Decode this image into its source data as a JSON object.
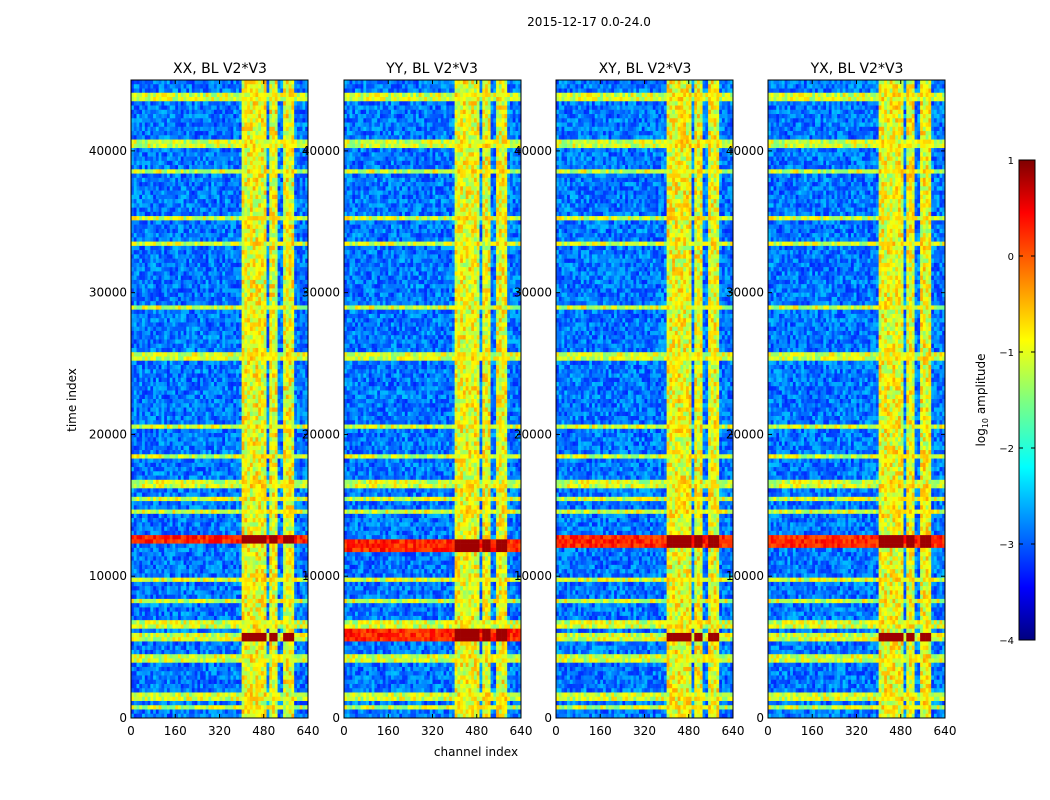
{
  "figure": {
    "suptitle": "2015-12-17 0.0-24.0",
    "colormap": "jet"
  },
  "chart_data": [
    {
      "type": "heatmap",
      "title": "XX, BL V2*V3",
      "xlabel": "channel index",
      "ylabel": "time index",
      "xlim": [
        0,
        640
      ],
      "ylim": [
        0,
        45000
      ],
      "xticks": [
        0,
        160,
        320,
        480,
        640
      ],
      "yticks": [
        0,
        10000,
        20000,
        30000,
        40000
      ],
      "bright_channel_bands": [
        [
          400,
          440
        ],
        [
          440,
          490
        ],
        [
          500,
          530
        ],
        [
          550,
          590
        ]
      ],
      "flagged_time_rows": [
        700,
        1500,
        4200,
        5700,
        6600,
        8300,
        9700,
        12600,
        14500,
        15500,
        16500,
        18500,
        20500,
        25500,
        29000,
        33500,
        35200,
        38500,
        40500,
        43800
      ],
      "hot_events": [
        {
          "time": 12600,
          "type": "row"
        },
        {
          "time": 5700,
          "type": "block"
        }
      ]
    },
    {
      "type": "heatmap",
      "title": "YY, BL V2*V3",
      "xlabel": "channel index",
      "ylabel": "time index",
      "xlim": [
        0,
        640
      ],
      "ylim": [
        0,
        45000
      ],
      "xticks": [
        0,
        160,
        320,
        480,
        640
      ],
      "yticks": [
        0,
        10000,
        20000,
        30000,
        40000
      ],
      "bright_channel_bands": [
        [
          400,
          440
        ],
        [
          440,
          490
        ],
        [
          500,
          530
        ],
        [
          550,
          590
        ]
      ],
      "flagged_time_rows": [
        700,
        1500,
        4200,
        5900,
        6600,
        8300,
        9700,
        12200,
        14500,
        15500,
        16500,
        18500,
        20500,
        25500,
        29000,
        33500,
        35200,
        38500,
        40500,
        43800
      ],
      "hot_events": [
        {
          "time": 12200,
          "type": "row"
        },
        {
          "time": 5900,
          "type": "row"
        }
      ]
    },
    {
      "type": "heatmap",
      "title": "XY, BL V2*V3",
      "xlabel": "channel index",
      "ylabel": "time index",
      "xlim": [
        0,
        640
      ],
      "ylim": [
        0,
        45000
      ],
      "xticks": [
        0,
        160,
        320,
        480,
        640
      ],
      "yticks": [
        0,
        10000,
        20000,
        30000,
        40000
      ],
      "bright_channel_bands": [
        [
          400,
          440
        ],
        [
          440,
          490
        ],
        [
          500,
          530
        ],
        [
          550,
          590
        ]
      ],
      "flagged_time_rows": [
        700,
        1500,
        4200,
        5700,
        6600,
        8300,
        9700,
        12400,
        14500,
        15500,
        16500,
        18500,
        20500,
        25500,
        29000,
        33500,
        35200,
        38500,
        40500,
        43800
      ],
      "hot_events": [
        {
          "time": 12400,
          "type": "row"
        },
        {
          "time": 5700,
          "type": "block"
        }
      ]
    },
    {
      "type": "heatmap",
      "title": "YX, BL V2*V3",
      "xlabel": "channel index",
      "ylabel": "time index",
      "xlim": [
        0,
        640
      ],
      "ylim": [
        0,
        45000
      ],
      "xticks": [
        0,
        160,
        320,
        480,
        640
      ],
      "yticks": [
        0,
        10000,
        20000,
        30000,
        40000
      ],
      "bright_channel_bands": [
        [
          400,
          440
        ],
        [
          440,
          490
        ],
        [
          500,
          530
        ],
        [
          550,
          590
        ]
      ],
      "flagged_time_rows": [
        700,
        1500,
        4200,
        5700,
        6600,
        8300,
        9700,
        12500,
        14500,
        15500,
        16500,
        18500,
        20500,
        25500,
        29000,
        33500,
        35200,
        38500,
        40500,
        43800
      ],
      "hot_events": [
        {
          "time": 12500,
          "type": "row"
        },
        {
          "time": 5700,
          "type": "block"
        }
      ]
    }
  ],
  "colorbar": {
    "label": "log",
    "label_sub": "10",
    "label_rest": " amplitude",
    "range": [
      -4,
      1
    ],
    "ticks": [
      1,
      0,
      -1,
      -2,
      -3,
      -4
    ],
    "tick_labels": [
      "1",
      "0",
      "−1",
      "−2",
      "−3",
      "−4"
    ]
  }
}
